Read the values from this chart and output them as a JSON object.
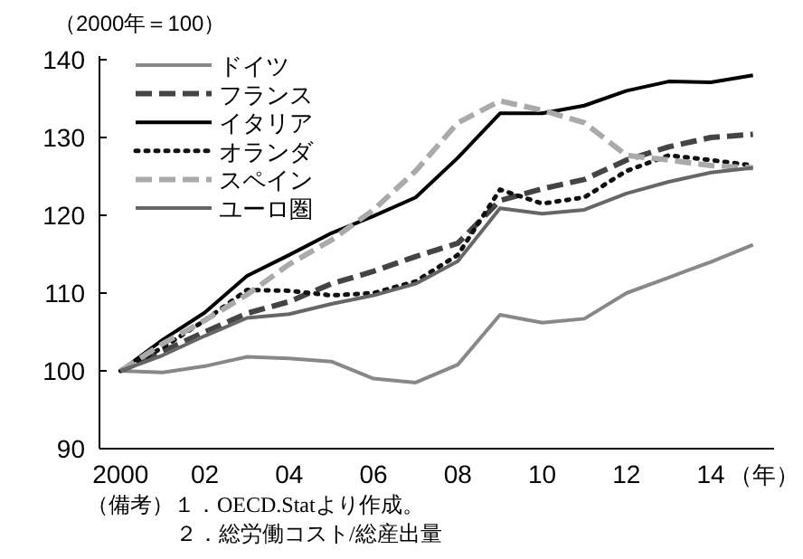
{
  "chart_data": {
    "type": "line",
    "ylabel": "（2000年＝100）",
    "xlabel": "（年）",
    "x": [
      2000,
      2001,
      2002,
      2003,
      2004,
      2005,
      2006,
      2007,
      2008,
      2009,
      2010,
      2011,
      2012,
      2013,
      2014,
      2015
    ],
    "series": [
      {
        "name": "ドイツ",
        "color": "#888888",
        "line_style": "solid",
        "values": [
          100,
          99.8,
          100.6,
          101.8,
          101.6,
          101.2,
          99,
          98.5,
          100.8,
          107.2,
          106.2,
          106.7,
          110,
          112,
          114,
          116.2
        ]
      },
      {
        "name": "フランス",
        "color": "#444444",
        "line_style": "dashed",
        "values": [
          100,
          102.5,
          105,
          107.4,
          108.9,
          111.2,
          112.8,
          114.7,
          116.4,
          121.9,
          123.4,
          124.6,
          127.1,
          128.8,
          130,
          130.4
        ]
      },
      {
        "name": "イタリア",
        "color": "#000000",
        "line_style": "solid",
        "values": [
          100,
          104,
          107.5,
          112.2,
          114.9,
          117.7,
          119.9,
          122.3,
          127.4,
          133.1,
          133.1,
          134.1,
          136,
          137.2,
          137.1,
          138
        ]
      },
      {
        "name": "オランダ",
        "color": "#111111",
        "line_style": "dotted",
        "values": [
          100,
          103,
          106.5,
          110.4,
          110.3,
          109.7,
          110,
          111.5,
          114.9,
          123.3,
          121.5,
          122.3,
          125.7,
          127.7,
          127.1,
          126.4
        ]
      },
      {
        "name": "スペイン",
        "color": "#aaaaaa",
        "line_style": "dashed",
        "values": [
          100,
          103.5,
          106.5,
          109.8,
          113.7,
          116.8,
          120.7,
          125.7,
          131.9,
          134.7,
          133.5,
          131.9,
          127.7,
          127.1,
          126.4,
          126.1
        ]
      },
      {
        "name": "ユーロ圏",
        "color": "#666666",
        "line_style": "solid",
        "values": [
          100,
          102,
          104.5,
          106.8,
          107.3,
          108.6,
          109.7,
          111.2,
          114.1,
          120.9,
          120.2,
          120.7,
          122.8,
          124.3,
          125.5,
          126.1
        ]
      }
    ],
    "xlim": [
      1999.5,
      2015.5
    ],
    "ylim": [
      90,
      140
    ],
    "xticks": [
      2000,
      {
        "value": 2002,
        "label": "02"
      },
      {
        "value": 2004,
        "label": "04"
      },
      {
        "value": 2006,
        "label": "06"
      },
      {
        "value": 2008,
        "label": "08"
      },
      {
        "value": 2010,
        "label": "10"
      },
      {
        "value": 2012,
        "label": "12"
      },
      {
        "value": 2014,
        "label": "14"
      }
    ],
    "yticks": [
      90,
      100,
      110,
      120,
      130,
      140
    ],
    "legend": "top left",
    "annotations": [
      "（備考）１．OECD.Statより作成。",
      "２．総労働コスト/総産出量"
    ]
  }
}
